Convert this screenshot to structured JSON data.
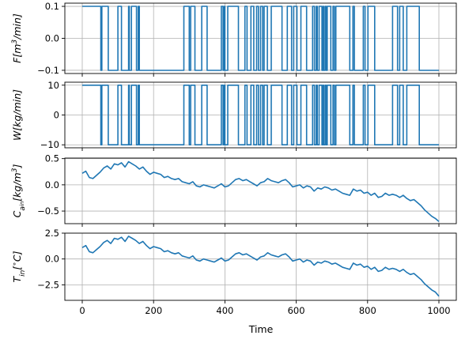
{
  "chart_data": {
    "type": "line",
    "xlabel": "Time",
    "x_range": [
      0,
      1000
    ],
    "x_ticks": [
      0,
      200,
      400,
      600,
      800,
      1000
    ],
    "grid": true,
    "line_color": "#1f77b4",
    "panels": [
      {
        "ylabel": "F[m^3/min]",
        "ylabel_parts": {
          "base": "F[m",
          "sup": "3",
          "rest": "/min]"
        },
        "ylim": [
          -0.11,
          0.11
        ],
        "y_ticks": [
          -0.1,
          0.0,
          0.1
        ],
        "y_tick_labels": [
          "−0.1",
          "0.0",
          "0.1"
        ],
        "high": 0.1,
        "low": -0.1,
        "segments": [
          [
            0,
            52,
            "H"
          ],
          [
            52,
            55,
            "L"
          ],
          [
            55,
            60,
            "H"
          ],
          [
            60,
            70,
            "H"
          ],
          [
            70,
            73,
            "H"
          ],
          [
            73,
            100,
            "L"
          ],
          [
            100,
            108,
            "H"
          ],
          [
            108,
            110,
            "H"
          ],
          [
            110,
            130,
            "L"
          ],
          [
            130,
            132,
            "H"
          ],
          [
            132,
            138,
            "L"
          ],
          [
            138,
            152,
            "H"
          ],
          [
            152,
            157,
            "L"
          ],
          [
            157,
            160,
            "H"
          ],
          [
            160,
            200,
            "L"
          ],
          [
            200,
            280,
            "L"
          ],
          [
            280,
            285,
            "L"
          ],
          [
            285,
            300,
            "H"
          ],
          [
            300,
            304,
            "L"
          ],
          [
            304,
            312,
            "H"
          ],
          [
            312,
            316,
            "H"
          ],
          [
            316,
            335,
            "L"
          ],
          [
            335,
            350,
            "H"
          ],
          [
            350,
            355,
            "L"
          ],
          [
            355,
            390,
            "L"
          ],
          [
            390,
            395,
            "H"
          ],
          [
            395,
            398,
            "L"
          ],
          [
            398,
            400,
            "H"
          ],
          [
            400,
            408,
            "L"
          ],
          [
            408,
            417,
            "H"
          ],
          [
            417,
            438,
            "H"
          ],
          [
            438,
            447,
            "L"
          ],
          [
            447,
            456,
            "L"
          ],
          [
            456,
            462,
            "H"
          ],
          [
            462,
            473,
            "L"
          ],
          [
            473,
            481,
            "H"
          ],
          [
            481,
            489,
            "L"
          ],
          [
            489,
            494,
            "H"
          ],
          [
            494,
            500,
            "L"
          ],
          [
            500,
            506,
            "H"
          ],
          [
            506,
            510,
            "L"
          ],
          [
            510,
            519,
            "H"
          ],
          [
            519,
            530,
            "L"
          ],
          [
            530,
            560,
            "H"
          ],
          [
            560,
            575,
            "L"
          ],
          [
            575,
            587,
            "H"
          ],
          [
            587,
            593,
            "L"
          ],
          [
            593,
            602,
            "H"
          ],
          [
            602,
            613,
            "L"
          ],
          [
            613,
            629,
            "H"
          ],
          [
            629,
            638,
            "L"
          ],
          [
            638,
            646,
            "L"
          ],
          [
            646,
            651,
            "H"
          ],
          [
            651,
            656,
            "L"
          ],
          [
            656,
            659,
            "H"
          ],
          [
            659,
            664,
            "L"
          ],
          [
            664,
            672,
            "H"
          ],
          [
            672,
            675,
            "L"
          ],
          [
            675,
            677,
            "H"
          ],
          [
            677,
            681,
            "L"
          ],
          [
            681,
            684,
            "H"
          ],
          [
            684,
            687,
            "L"
          ],
          [
            687,
            697,
            "H"
          ],
          [
            697,
            703,
            "L"
          ],
          [
            703,
            707,
            "H"
          ],
          [
            707,
            711,
            "L"
          ],
          [
            711,
            716,
            "H"
          ],
          [
            716,
            727,
            "H"
          ],
          [
            727,
            750,
            "H"
          ],
          [
            750,
            759,
            "L"
          ],
          [
            759,
            763,
            "H"
          ],
          [
            763,
            778,
            "L"
          ],
          [
            778,
            788,
            "L"
          ],
          [
            788,
            793,
            "H"
          ],
          [
            793,
            801,
            "L"
          ],
          [
            801,
            812,
            "H"
          ],
          [
            812,
            820,
            "H"
          ],
          [
            820,
            848,
            "L"
          ],
          [
            848,
            852,
            "L"
          ],
          [
            852,
            870,
            "L"
          ],
          [
            870,
            875,
            "H"
          ],
          [
            875,
            884,
            "H"
          ],
          [
            884,
            890,
            "L"
          ],
          [
            890,
            900,
            "H"
          ],
          [
            900,
            910,
            "L"
          ],
          [
            910,
            925,
            "H"
          ],
          [
            925,
            945,
            "H"
          ],
          [
            945,
            985,
            "L"
          ],
          [
            985,
            993,
            "L"
          ],
          [
            993,
            1000,
            "L"
          ]
        ]
      },
      {
        "ylabel": "W[kg/min]",
        "ylim": [
          -11,
          11
        ],
        "y_ticks": [
          -10,
          0,
          10
        ],
        "y_tick_labels": [
          "−10",
          "0",
          "10"
        ],
        "high": 10,
        "low": -10,
        "copy_segments_from": 0
      },
      {
        "ylabel": "C_ain[kg/m^3]",
        "ylabel_parts": {
          "base": "C",
          "sub": "a",
          "subsub": "in",
          "mid": "[kg/m",
          "sup": "3",
          "rest": "]"
        },
        "ylim": [
          -0.74,
          0.51
        ],
        "y_ticks": [
          -0.5,
          0.0,
          0.5
        ],
        "y_tick_labels": [
          "−0.5",
          "0.0",
          "0.5"
        ],
        "x": [
          0,
          10,
          20,
          30,
          40,
          50,
          60,
          70,
          80,
          90,
          100,
          110,
          120,
          130,
          140,
          150,
          160,
          170,
          180,
          190,
          200,
          210,
          220,
          230,
          240,
          250,
          260,
          270,
          280,
          290,
          300,
          310,
          320,
          330,
          340,
          350,
          360,
          370,
          380,
          390,
          400,
          410,
          420,
          430,
          440,
          450,
          460,
          470,
          480,
          490,
          500,
          510,
          520,
          530,
          540,
          550,
          560,
          570,
          580,
          590,
          600,
          610,
          620,
          630,
          640,
          650,
          660,
          670,
          680,
          690,
          700,
          710,
          720,
          730,
          740,
          750,
          760,
          770,
          780,
          790,
          800,
          810,
          820,
          830,
          840,
          850,
          860,
          870,
          880,
          890,
          900,
          910,
          920,
          930,
          940,
          950,
          960,
          970,
          980,
          990,
          1000
        ],
        "values": [
          0.22,
          0.26,
          0.14,
          0.12,
          0.18,
          0.24,
          0.32,
          0.36,
          0.3,
          0.4,
          0.38,
          0.42,
          0.34,
          0.44,
          0.4,
          0.36,
          0.3,
          0.34,
          0.26,
          0.2,
          0.24,
          0.22,
          0.2,
          0.14,
          0.16,
          0.12,
          0.1,
          0.12,
          0.06,
          0.04,
          0.02,
          0.06,
          -0.02,
          -0.04,
          0.0,
          -0.02,
          -0.04,
          -0.06,
          -0.02,
          0.02,
          -0.04,
          -0.02,
          0.04,
          0.1,
          0.12,
          0.08,
          0.1,
          0.06,
          0.02,
          -0.02,
          0.04,
          0.06,
          0.12,
          0.08,
          0.06,
          0.04,
          0.08,
          0.1,
          0.04,
          -0.04,
          -0.02,
          0.0,
          -0.06,
          -0.02,
          -0.04,
          -0.12,
          -0.06,
          -0.08,
          -0.04,
          -0.06,
          -0.1,
          -0.08,
          -0.12,
          -0.16,
          -0.18,
          -0.2,
          -0.08,
          -0.12,
          -0.1,
          -0.16,
          -0.14,
          -0.2,
          -0.16,
          -0.24,
          -0.22,
          -0.16,
          -0.2,
          -0.18,
          -0.2,
          -0.24,
          -0.2,
          -0.26,
          -0.3,
          -0.28,
          -0.34,
          -0.4,
          -0.48,
          -0.54,
          -0.6,
          -0.64,
          -0.7
        ]
      },
      {
        "ylabel": "T_in[°C]",
        "ylabel_parts": {
          "base": "T",
          "sub": "in",
          "rest": "[",
          "sup": "∘",
          "tail": "C]"
        },
        "ylim": [
          -4.0,
          2.5
        ],
        "y_ticks": [
          -2.5,
          0.0,
          2.5
        ],
        "y_tick_labels": [
          "−2.5",
          "0.0",
          "2.5"
        ],
        "x": [
          0,
          10,
          20,
          30,
          40,
          50,
          60,
          70,
          80,
          90,
          100,
          110,
          120,
          130,
          140,
          150,
          160,
          170,
          180,
          190,
          200,
          210,
          220,
          230,
          240,
          250,
          260,
          270,
          280,
          290,
          300,
          310,
          320,
          330,
          340,
          350,
          360,
          370,
          380,
          390,
          400,
          410,
          420,
          430,
          440,
          450,
          460,
          470,
          480,
          490,
          500,
          510,
          520,
          530,
          540,
          550,
          560,
          570,
          580,
          590,
          600,
          610,
          620,
          630,
          640,
          650,
          660,
          670,
          680,
          690,
          700,
          710,
          720,
          730,
          740,
          750,
          760,
          770,
          780,
          790,
          800,
          810,
          820,
          830,
          840,
          850,
          860,
          870,
          880,
          890,
          900,
          910,
          920,
          930,
          940,
          950,
          960,
          970,
          980,
          990,
          1000
        ],
        "values": [
          1.1,
          1.3,
          0.7,
          0.6,
          0.9,
          1.2,
          1.6,
          1.8,
          1.5,
          2.0,
          1.9,
          2.1,
          1.7,
          2.2,
          2.0,
          1.8,
          1.5,
          1.7,
          1.3,
          1.0,
          1.2,
          1.1,
          1.0,
          0.7,
          0.8,
          0.6,
          0.5,
          0.6,
          0.3,
          0.2,
          0.1,
          0.3,
          -0.1,
          -0.2,
          0.0,
          -0.1,
          -0.2,
          -0.3,
          -0.1,
          0.1,
          -0.2,
          -0.1,
          0.2,
          0.5,
          0.6,
          0.4,
          0.5,
          0.3,
          0.1,
          -0.1,
          0.2,
          0.3,
          0.6,
          0.4,
          0.3,
          0.2,
          0.4,
          0.5,
          0.2,
          -0.2,
          -0.1,
          0.0,
          -0.3,
          -0.1,
          -0.2,
          -0.6,
          -0.3,
          -0.4,
          -0.2,
          -0.3,
          -0.5,
          -0.4,
          -0.6,
          -0.8,
          -0.9,
          -1.0,
          -0.4,
          -0.6,
          -0.5,
          -0.8,
          -0.7,
          -1.0,
          -0.8,
          -1.2,
          -1.1,
          -0.8,
          -1.0,
          -0.9,
          -1.0,
          -1.2,
          -1.0,
          -1.3,
          -1.5,
          -1.4,
          -1.7,
          -2.0,
          -2.4,
          -2.7,
          -3.0,
          -3.2,
          -3.6
        ]
      }
    ]
  }
}
